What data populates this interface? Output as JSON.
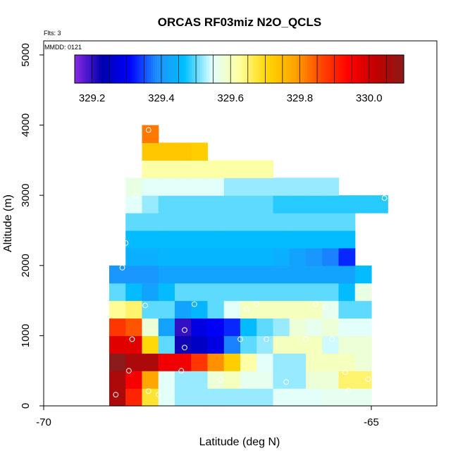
{
  "chart_data": {
    "type": "heatmap",
    "title": "ORCAS RF03miz N2O_QCLS",
    "xlabel": "Latitude (deg N)",
    "ylabel": "Altitude (m)",
    "xlim": [
      -70,
      -64
    ],
    "ylim": [
      0,
      5200
    ],
    "x_ticks": [
      {
        "value": -70,
        "label": "-70"
      },
      {
        "value": -65,
        "label": "-65"
      }
    ],
    "y_ticks": [
      {
        "value": 0,
        "label": "0"
      },
      {
        "value": 1000,
        "label": "1000"
      },
      {
        "value": 2000,
        "label": "2000"
      },
      {
        "value": 3000,
        "label": "3000"
      },
      {
        "value": 4000,
        "label": "4000"
      },
      {
        "value": 5000,
        "label": "5000"
      }
    ],
    "flights_note": "Flts: 3",
    "date_note": "MMDD: 0121",
    "colorbar": {
      "min": 329.15,
      "max": 330.1,
      "ticks": [
        {
          "value": 329.2,
          "label": "329.2"
        },
        {
          "value": 329.4,
          "label": "329.4"
        },
        {
          "value": 329.6,
          "label": "329.6"
        },
        {
          "value": 329.8,
          "label": "329.8"
        },
        {
          "value": 330.0,
          "label": "330.0"
        }
      ],
      "colors": [
        "#8a2be2",
        "#0000b0",
        "#0000ff",
        "#1e90ff",
        "#00bfff",
        "#e0ffff",
        "#ffffa0",
        "#ffd700",
        "#ffa500",
        "#ff4500",
        "#ff0000",
        "#c00000",
        "#8b1a1a"
      ]
    },
    "cell_width_deg": 0.25,
    "cell_height_m": 250,
    "rows": [
      {
        "alt": 0,
        "lat0": -69.0,
        "values": [
          330.05,
          329.9,
          329.68,
          329.55,
          329.52,
          329.52,
          329.52,
          329.52,
          329.52,
          329.52,
          329.55,
          329.55,
          329.55,
          329.56,
          329.56,
          329.56
        ]
      },
      {
        "alt": 250,
        "lat0": -69.0,
        "values": [
          330.05,
          329.95,
          329.78,
          329.55,
          329.52,
          329.52,
          329.58,
          329.6,
          329.56,
          329.56,
          329.52,
          329.52,
          329.58,
          329.58,
          329.65,
          329.65
        ]
      },
      {
        "alt": 500,
        "lat0": -69.0,
        "values": [
          330.1,
          330.05,
          330.05,
          329.96,
          329.96,
          329.88,
          329.8,
          329.72,
          329.62,
          329.55,
          329.52,
          329.52,
          329.6,
          329.6,
          329.6,
          329.58
        ]
      },
      {
        "alt": 750,
        "lat0": -69.0,
        "values": [
          329.98,
          329.98,
          329.7,
          329.5,
          329.22,
          329.25,
          329.28,
          329.38,
          329.5,
          329.52,
          329.6,
          329.6,
          329.6,
          329.54,
          329.58,
          329.58
        ]
      },
      {
        "alt": 1000,
        "lat0": -69.0,
        "values": [
          329.88,
          329.85,
          329.58,
          329.42,
          329.2,
          329.28,
          329.3,
          329.33,
          329.46,
          329.5,
          329.52,
          329.58,
          329.56,
          329.58,
          329.55,
          329.55
        ]
      },
      {
        "alt": 1250,
        "lat0": -69.0,
        "values": [
          329.63,
          329.65,
          329.5,
          329.5,
          329.42,
          329.45,
          329.5,
          329.55,
          329.6,
          329.6,
          329.6,
          329.6,
          329.6,
          329.56,
          329.5,
          329.5
        ]
      },
      {
        "alt": 1500,
        "lat0": -69.0,
        "values": [
          329.5,
          329.46,
          329.42,
          329.46,
          329.5,
          329.5,
          329.5,
          329.5,
          329.5,
          329.5,
          329.5,
          329.5,
          329.5,
          329.5,
          329.46,
          329.57
        ]
      },
      {
        "alt": 1750,
        "lat0": -69.0,
        "values": [
          329.4,
          329.4,
          329.4,
          329.42,
          329.42,
          329.42,
          329.42,
          329.42,
          329.42,
          329.42,
          329.42,
          329.42,
          329.42,
          329.42,
          329.42,
          329.46
        ]
      },
      {
        "alt": 2000,
        "lat0": -68.75,
        "values": [
          329.44,
          329.44,
          329.45,
          329.45,
          329.45,
          329.45,
          329.45,
          329.45,
          329.45,
          329.44,
          329.42,
          329.4,
          329.38,
          329.33
        ]
      },
      {
        "alt": 2250,
        "lat0": -68.75,
        "values": [
          329.46,
          329.46,
          329.46,
          329.46,
          329.46,
          329.46,
          329.46,
          329.46,
          329.46,
          329.46,
          329.46,
          329.46,
          329.46,
          329.46
        ]
      },
      {
        "alt": 2500,
        "lat0": -68.75,
        "values": [
          329.5,
          329.5,
          329.5,
          329.5,
          329.5,
          329.5,
          329.5,
          329.5,
          329.5,
          329.5,
          329.5,
          329.5,
          329.5,
          329.5
        ]
      },
      {
        "alt": 2750,
        "lat0": -68.75,
        "values": [
          329.55,
          329.52,
          329.5,
          329.5,
          329.5,
          329.5,
          329.5,
          329.5,
          329.5,
          329.48,
          329.48,
          329.48,
          329.48,
          329.48,
          329.48,
          329.48
        ]
      },
      {
        "alt": 3000,
        "lat0": -68.75,
        "values": [
          329.57,
          329.55,
          329.55,
          329.55,
          329.55,
          329.55,
          329.52,
          329.52,
          329.52,
          329.52,
          329.52,
          329.52,
          329.52
        ]
      },
      {
        "alt": 3250,
        "lat0": -68.5,
        "values": [
          329.62,
          329.62,
          329.62,
          329.62,
          329.62,
          329.62,
          329.62,
          329.62
        ]
      },
      {
        "alt": 3500,
        "lat0": -68.5,
        "values": [
          329.73,
          329.73,
          329.73,
          329.72
        ]
      },
      {
        "alt": 3750,
        "lat0": -68.5,
        "values": [
          329.82
        ]
      }
    ],
    "flight_points": [
      {
        "lat": -68.9,
        "alt": 160
      },
      {
        "lat": -68.7,
        "alt": 500
      },
      {
        "lat": -68.4,
        "alt": 210
      },
      {
        "lat": -68.25,
        "alt": 160
      },
      {
        "lat": -67.9,
        "alt": 500
      },
      {
        "lat": -67.3,
        "alt": 370
      },
      {
        "lat": -66.3,
        "alt": 340
      },
      {
        "lat": -65.4,
        "alt": 480
      },
      {
        "lat": -65.35,
        "alt": 220
      },
      {
        "lat": -65.05,
        "alt": 380
      },
      {
        "lat": -68.65,
        "alt": 950
      },
      {
        "lat": -67.85,
        "alt": 830
      },
      {
        "lat": -67.85,
        "alt": 1080
      },
      {
        "lat": -67.0,
        "alt": 950
      },
      {
        "lat": -66.6,
        "alt": 950
      },
      {
        "lat": -66.0,
        "alt": 950
      },
      {
        "lat": -65.6,
        "alt": 950
      },
      {
        "lat": -68.45,
        "alt": 1430
      },
      {
        "lat": -67.7,
        "alt": 1450
      },
      {
        "lat": -66.9,
        "alt": 1380
      },
      {
        "lat": -66.75,
        "alt": 1450
      },
      {
        "lat": -65.85,
        "alt": 1450
      },
      {
        "lat": -65.7,
        "alt": 1400
      },
      {
        "lat": -68.8,
        "alt": 1970
      },
      {
        "lat": -68.75,
        "alt": 2320
      },
      {
        "lat": -68.6,
        "alt": 3000
      },
      {
        "lat": -64.95,
        "alt": 2150
      },
      {
        "lat": -64.8,
        "alt": 2960
      },
      {
        "lat": -68.4,
        "alt": 3930
      }
    ]
  }
}
